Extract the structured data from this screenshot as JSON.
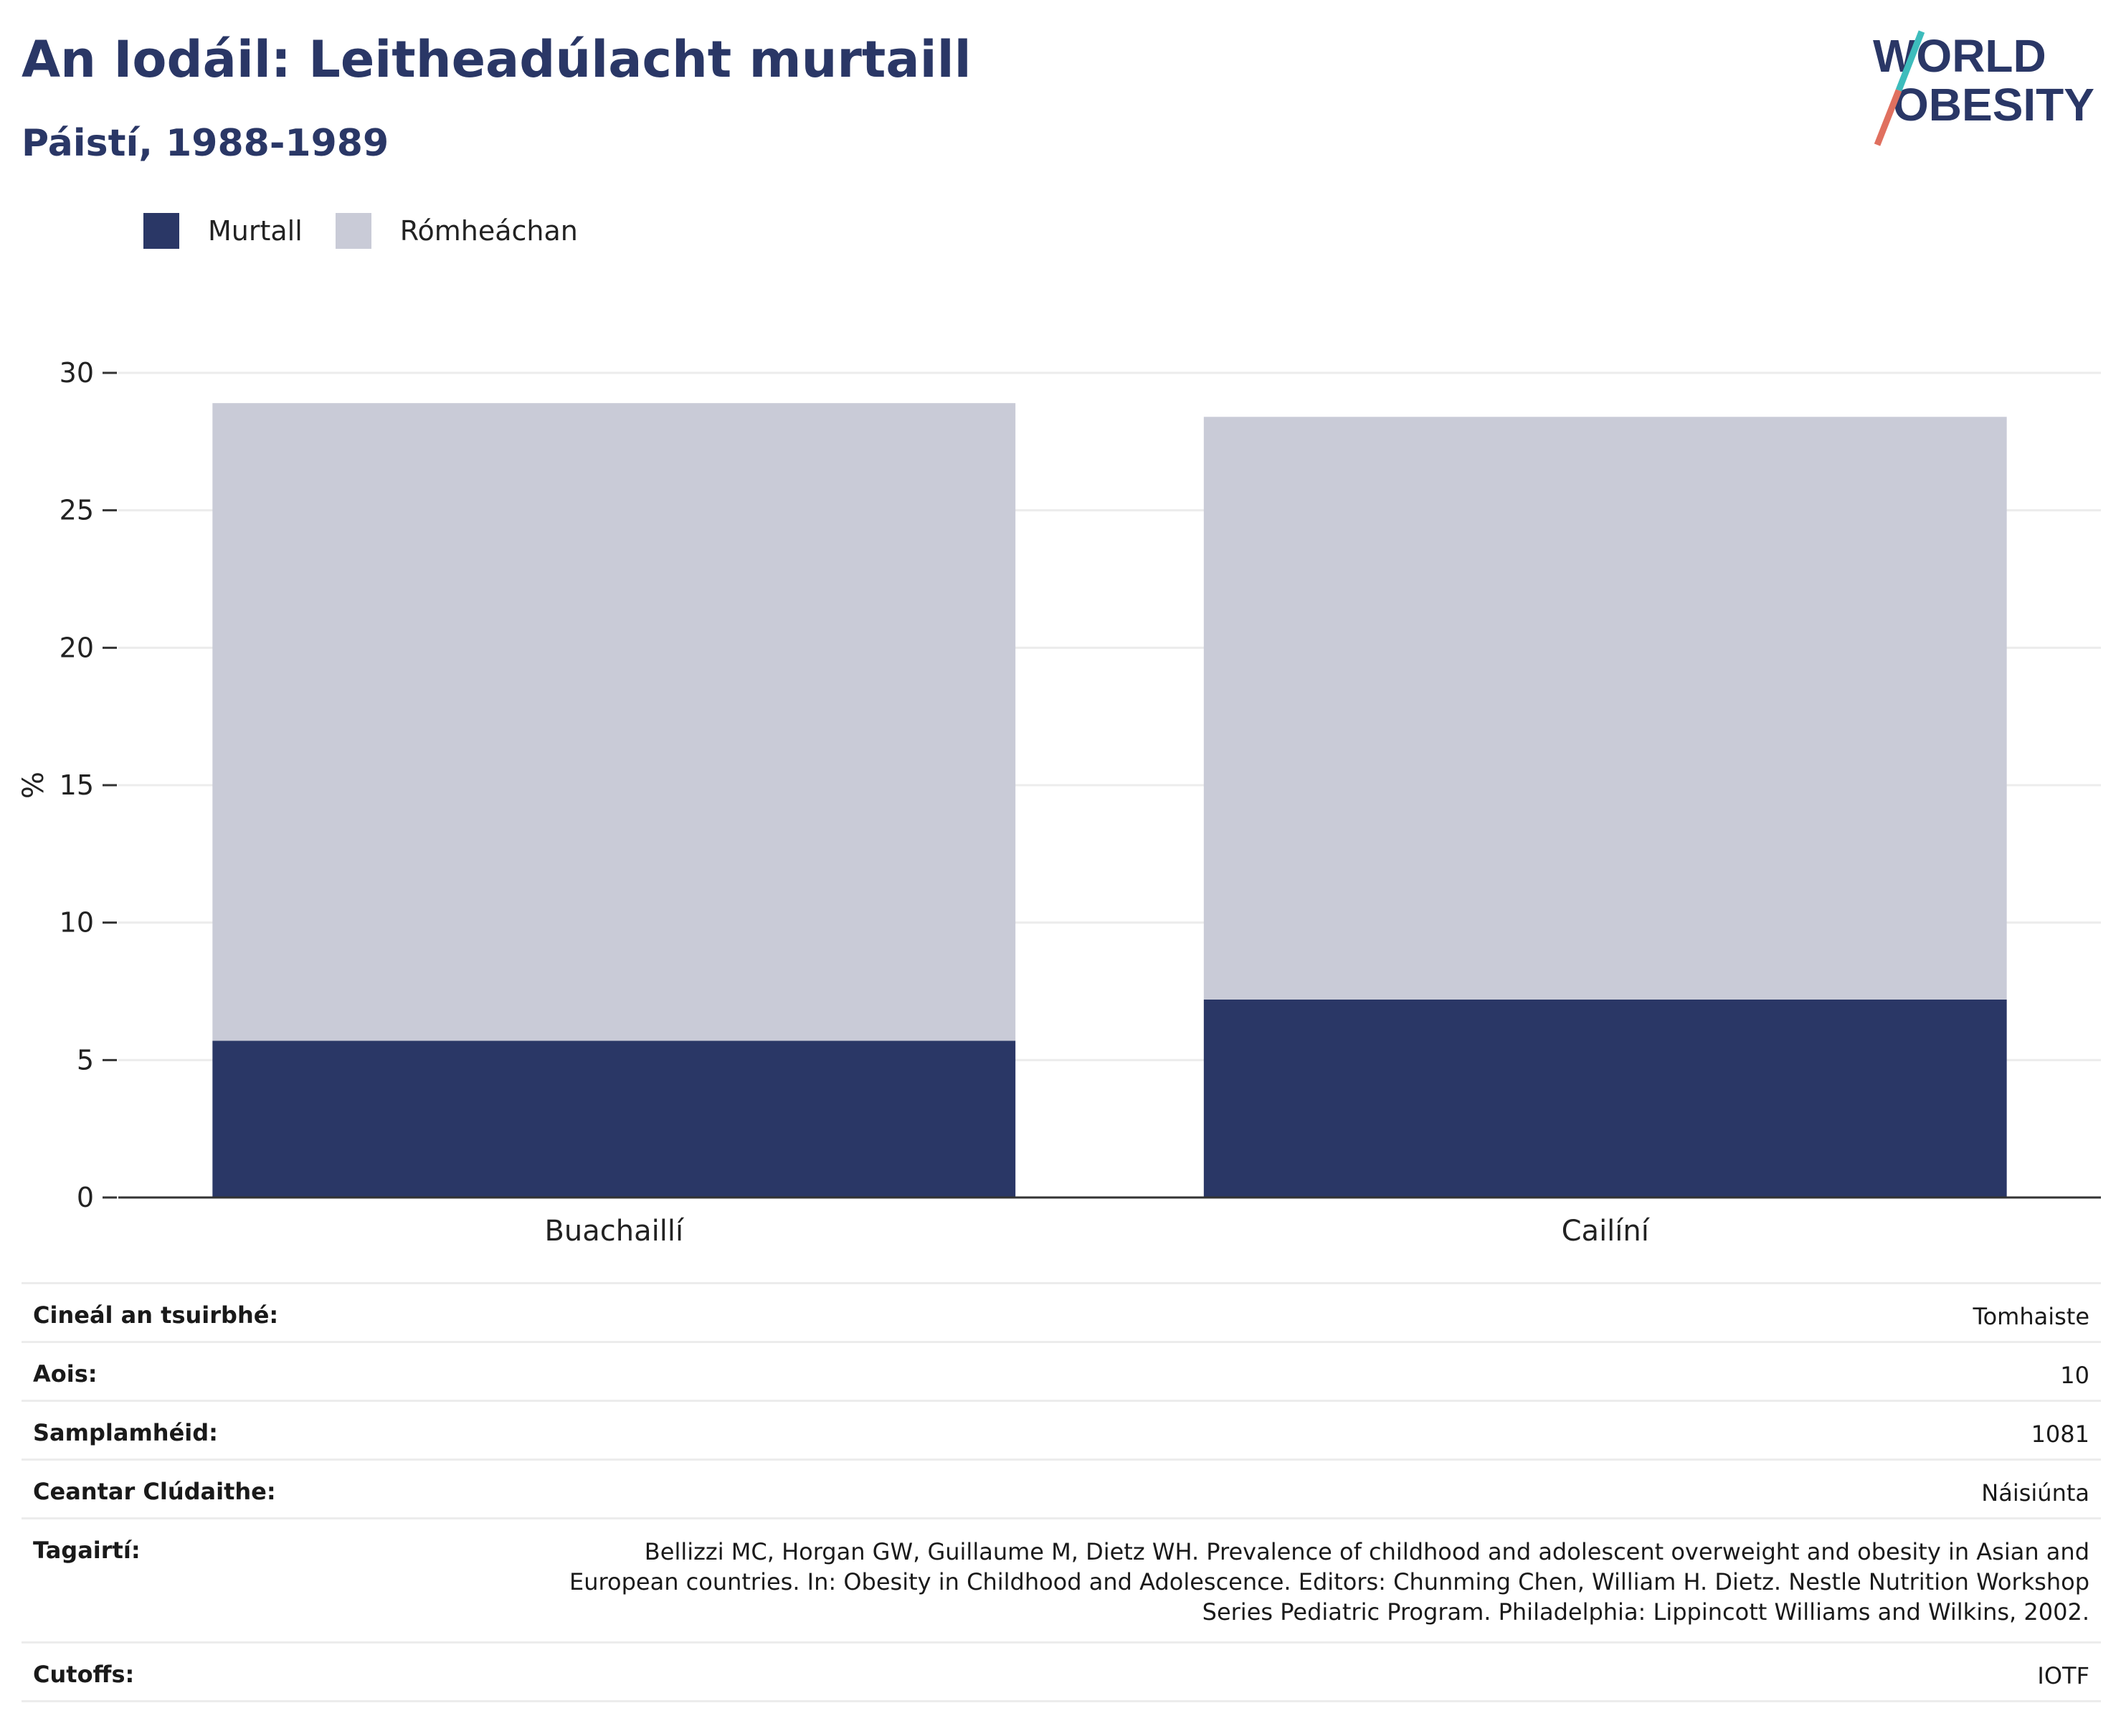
{
  "header": {
    "title": "An Iodáil: Leitheadúlacht murtaill",
    "subtitle": "Páistí, 1988-1989"
  },
  "logo": {
    "line1": "WORLD",
    "line2": "OBESITY"
  },
  "chart_data": {
    "type": "bar",
    "stacked": true,
    "categories": [
      "Buachaillí",
      "Cailíní"
    ],
    "series": [
      {
        "name": "Murtall",
        "values": [
          5.7,
          7.2
        ],
        "color": "#2a3766"
      },
      {
        "name": "Rómheáchan",
        "values": [
          23.2,
          21.2
        ],
        "color": "#c9cbd7"
      }
    ],
    "title": "An Iodáil: Leitheadúlacht murtaill",
    "subtitle": "Páistí, 1988-1989",
    "xlabel": "",
    "ylabel": "%",
    "ylim": [
      0,
      30
    ],
    "yticks": [
      0,
      5,
      10,
      15,
      20,
      25,
      30
    ],
    "grid": true,
    "legend_position": "top-left"
  },
  "meta": {
    "rows": [
      {
        "key": "Cineál an tsuirbhé:",
        "value": "Tomhaiste"
      },
      {
        "key": "Aois:",
        "value": "10"
      },
      {
        "key": "Samplamhéid:",
        "value": "1081"
      },
      {
        "key": "Ceantar Clúdaithe:",
        "value": "Náisiúnta"
      },
      {
        "key": "Tagairtí:",
        "value_lines": [
          "Bellizzi MC, Horgan GW, Guillaume M, Dietz WH. Prevalence of childhood and adolescent overweight and obesity in Asian and",
          "European countries. In: Obesity in Childhood and Adolescence. Editors: Chunming Chen, William H. Dietz. Nestle Nutrition Workshop",
          "Series Pediatric Program. Philadelphia: Lippincott Williams and Wilkins, 2002."
        ]
      },
      {
        "key": "Cutoffs:",
        "value": "IOTF"
      }
    ]
  },
  "colors": {
    "brand_navy": "#2a3766",
    "light_bar": "#c9cbd7",
    "logo_teal": "#3dbcbc",
    "logo_coral": "#e0705f",
    "grid": "#ececec"
  }
}
